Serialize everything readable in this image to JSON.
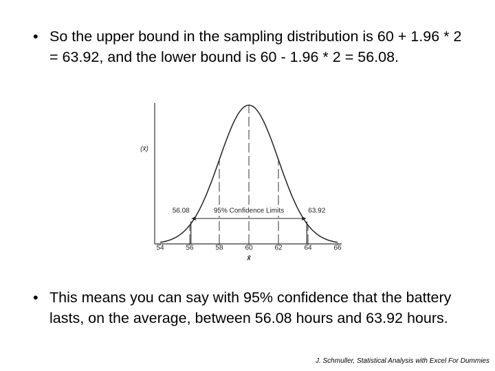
{
  "bullets": [
    "So the upper bound in the sampling distribution is 60 + 1.96 * 2 = 63.92, and the lower bound is 60 - 1.96 * 2 = 56.08.",
    "This means you can say with 95% confidence that the battery lasts, on the average, between 56.08 hours and 63.92 hours."
  ],
  "citation": "J. Schmuller, Statistical Analysis with Excel For Dummies",
  "chart_data": {
    "type": "normal-curve",
    "mean": 60,
    "sd": 2,
    "xlim": [
      54,
      66
    ],
    "xticks": [
      54,
      56,
      58,
      60,
      62,
      64,
      66
    ],
    "x_label": "x̄",
    "y_label": "(x̄)",
    "limits": [
      56.08,
      63.92
    ],
    "annotation": "95% Confidence Limits"
  }
}
